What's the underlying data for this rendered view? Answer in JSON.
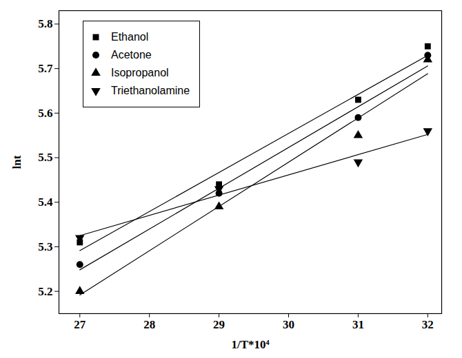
{
  "chart_data": {
    "type": "scatter",
    "x_label": "1/T*10⁴",
    "y_label": "lnt",
    "xlim": [
      26.7,
      32.2
    ],
    "xticks": [
      27,
      28,
      29,
      30,
      31,
      32
    ],
    "ylim": [
      5.15,
      5.83
    ],
    "yticks": [
      5.2,
      5.3,
      5.4,
      5.5,
      5.6,
      5.7,
      5.8
    ],
    "legend": "top-left",
    "series": [
      {
        "name": "Ethanol",
        "color": "#000000",
        "marker": "square",
        "line_style": "solid",
        "x": [
          27,
          29,
          31,
          32
        ],
        "values": [
          5.31,
          5.44,
          5.63,
          5.75
        ]
      },
      {
        "name": "Acetone",
        "color": "#000000",
        "marker": "circle",
        "line_style": "solid",
        "x": [
          27,
          29,
          31,
          32
        ],
        "values": [
          5.26,
          5.42,
          5.59,
          5.73
        ]
      },
      {
        "name": "Isopropanol",
        "color": "#000000",
        "marker": "triangle",
        "line_style": "solid",
        "x": [
          27,
          29,
          31,
          32
        ],
        "values": [
          5.2,
          5.39,
          5.55,
          5.72
        ]
      },
      {
        "name": "Triethanolamine",
        "color": "#000000",
        "marker": "triangle-down",
        "line_style": "solid",
        "x": [
          27,
          29,
          31,
          32
        ],
        "values": [
          5.32,
          5.43,
          5.49,
          5.56
        ]
      }
    ]
  }
}
